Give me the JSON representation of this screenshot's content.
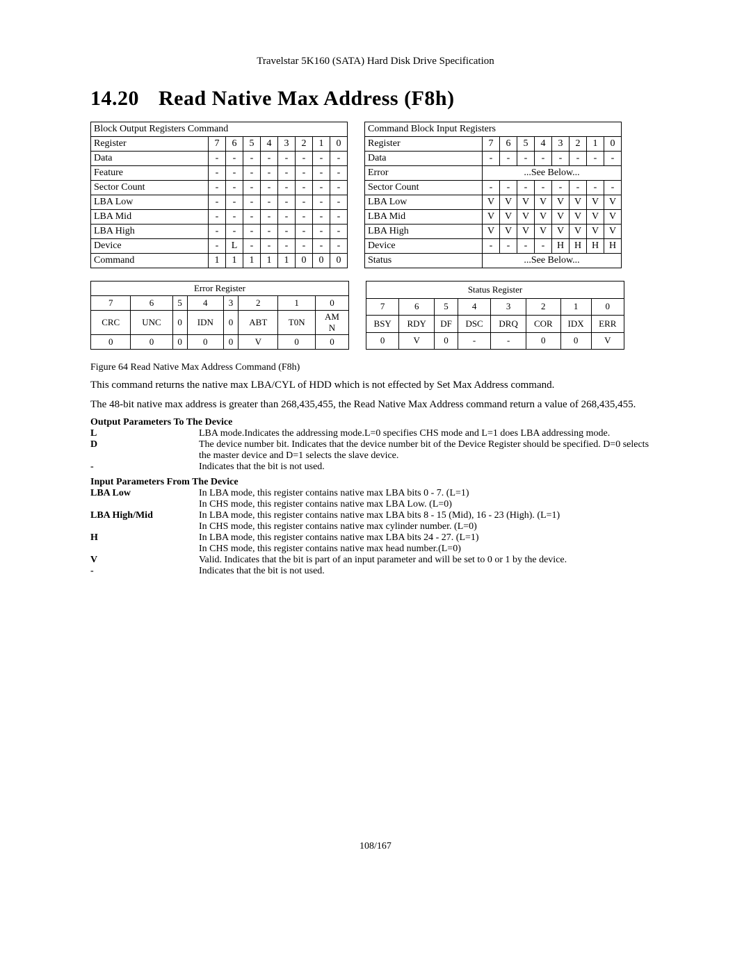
{
  "header": "Travelstar 5K160 (SATA) Hard Disk Drive Specification",
  "section_number": "14.20",
  "section_title": "Read Native Max Address (F8h)",
  "output_table": {
    "title": "Block Output Registers Command",
    "bit_header": [
      "7",
      "6",
      "5",
      "4",
      "3",
      "2",
      "1",
      "0"
    ],
    "rows": [
      {
        "label": "Data",
        "cells": [
          "-",
          "-",
          "-",
          "-",
          "-",
          "-",
          "-",
          "-"
        ]
      },
      {
        "label": "Feature",
        "cells": [
          "-",
          "-",
          "-",
          "-",
          "-",
          "-",
          "-",
          "-"
        ]
      },
      {
        "label": "Sector Count",
        "cells": [
          "-",
          "-",
          "-",
          "-",
          "-",
          "-",
          "-",
          "-"
        ]
      },
      {
        "label": "LBA Low",
        "cells": [
          "-",
          "-",
          "-",
          "-",
          "-",
          "-",
          "-",
          "-"
        ]
      },
      {
        "label": "LBA Mid",
        "cells": [
          "-",
          "-",
          "-",
          "-",
          "-",
          "-",
          "-",
          "-"
        ]
      },
      {
        "label": "LBA High",
        "cells": [
          "-",
          "-",
          "-",
          "-",
          "-",
          "-",
          "-",
          "-"
        ]
      },
      {
        "label": "Device",
        "cells": [
          "-",
          "L",
          "-",
          "-",
          "-",
          "-",
          "-",
          "-"
        ]
      },
      {
        "label": "Command",
        "cells": [
          "1",
          "1",
          "1",
          "1",
          "1",
          "0",
          "0",
          "0"
        ]
      }
    ]
  },
  "input_table": {
    "title": "Command Block Input Registers",
    "bit_header": [
      "7",
      "6",
      "5",
      "4",
      "3",
      "2",
      "1",
      "0"
    ],
    "rows": [
      {
        "label": "Data",
        "cells": [
          "-",
          "-",
          "-",
          "-",
          "-",
          "-",
          "-",
          "-"
        ]
      },
      {
        "label": "Error",
        "see_below": true
      },
      {
        "label": "Sector Count",
        "cells": [
          "-",
          "-",
          "-",
          "-",
          "-",
          "-",
          "-",
          "-"
        ]
      },
      {
        "label": "LBA Low",
        "cells": [
          "V",
          "V",
          "V",
          "V",
          "V",
          "V",
          "V",
          "V"
        ]
      },
      {
        "label": "LBA Mid",
        "cells": [
          "V",
          "V",
          "V",
          "V",
          "V",
          "V",
          "V",
          "V"
        ]
      },
      {
        "label": "LBA High",
        "cells": [
          "V",
          "V",
          "V",
          "V",
          "V",
          "V",
          "V",
          "V"
        ]
      },
      {
        "label": "Device",
        "cells": [
          "-",
          "-",
          "-",
          "-",
          "H",
          "H",
          "H",
          "H"
        ]
      },
      {
        "label": "Status",
        "see_below": true
      }
    ],
    "see_below_text": "...See Below..."
  },
  "error_register": {
    "title": "Error Register",
    "bits": [
      "7",
      "6",
      "5",
      "4",
      "3",
      "2",
      "1",
      "0"
    ],
    "names": [
      "CRC",
      "UNC",
      "0",
      "IDN",
      "0",
      "ABT",
      "T0N",
      "AMN"
    ],
    "values": [
      "0",
      "0",
      "0",
      "0",
      "0",
      "V",
      "0",
      "0"
    ]
  },
  "status_register": {
    "title": "Status Register",
    "bits": [
      "7",
      "6",
      "5",
      "4",
      "3",
      "2",
      "1",
      "0"
    ],
    "names": [
      "BSY",
      "RDY",
      "DF",
      "DSC",
      "DRQ",
      "COR",
      "IDX",
      "ERR"
    ],
    "values": [
      "0",
      "V",
      "0",
      "-",
      "-",
      "0",
      "0",
      "V"
    ]
  },
  "figure_caption": "Figure 64 Read Native Max Address Command (F8h)",
  "paragraph1": "This command returns the native max LBA/CYL of HDD which is not effected by Set Max Address command.",
  "paragraph2": "The 48-bit native max address is greater than 268,435,455, the Read Native Max Address command return a value of 268,435,455.",
  "out_params_title": "Output Parameters To The Device",
  "out_params": [
    {
      "k": "L",
      "v": "LBA mode.Indicates the addressing mode.L=0 specifies CHS mode and L=1 does LBA addressing mode."
    },
    {
      "k": "D",
      "v": "The device number bit. Indicates that the device number bit of the Device Register should be specified. D=0 selects the master device and D=1 selects the slave device."
    },
    {
      "k": "-",
      "v": "Indicates that the bit is not used."
    }
  ],
  "in_params_title": "Input Parameters From The Device",
  "in_params": [
    {
      "k": "LBA Low",
      "v": "In LBA mode, this register contains native max LBA bits 0 - 7. (L=1)\nIn CHS mode, this register contains native max LBA Low. (L=0)"
    },
    {
      "k": "LBA High/Mid",
      "v": "In LBA mode, this register contains native max LBA bits 8 - 15 (Mid), 16 - 23 (High). (L=1)\nIn CHS mode, this register contains native max cylinder number. (L=0)"
    },
    {
      "k": "H",
      "v": "In LBA mode, this register contains native max LBA bits 24 - 27. (L=1)\nIn CHS mode, this register contains native max head number.(L=0)"
    },
    {
      "k": "V",
      "v": "Valid. Indicates that the bit is part of an input parameter and will be set to 0 or 1 by the device."
    },
    {
      "k": "-",
      "v": "Indicates that the bit is not used."
    }
  ],
  "footer": "108/167"
}
